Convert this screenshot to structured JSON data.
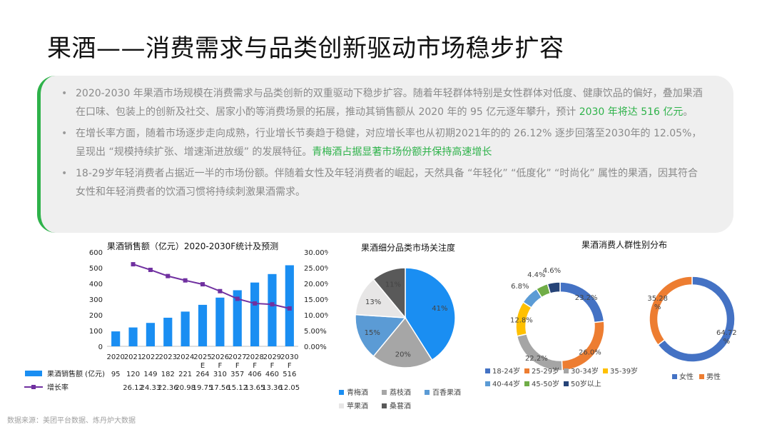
{
  "page": {
    "title": "果酒——消费需求与品类创新驱动市场稳步扩容",
    "source": "数据来源：美团平台数据、炼丹炉大数据"
  },
  "bullets": [
    {
      "parts": [
        {
          "text": "2020-2030 年果酒市场规模在消费需求与品类创新的双重驱动下稳步扩容。随着年轻群体特别是女性群体对低度、健康饮品的偏好，叠加果酒在口味、包装上的创新及社交、居家小酌等消费场景的拓展，推动其销售额从 2020 年的 95 亿元逐年攀升，预计 ",
          "highlight": false
        },
        {
          "text": "2030 年将达 516 亿元",
          "highlight": true
        },
        {
          "text": "。",
          "highlight": false
        }
      ]
    },
    {
      "parts": [
        {
          "text": "在增长率方面，随着市场逐步走向成熟，行业增长节奏趋于稳健，对应增长率也从初期2021年的的 26.12% 逐步回落至2030年的 12.05%，呈现出 “规模持续扩张、增速渐进放缓” 的发展特征。",
          "highlight": false
        },
        {
          "text": "青梅酒占据显著市场份额并保持高速增长",
          "highlight": true
        }
      ]
    },
    {
      "parts": [
        {
          "text": "18-29岁年轻消费者占据近一半的市场份额。伴随着女性及年轻消费者的崛起，天然具备 “年轻化” “低度化” “时尚化” 属性的果酒，因其符合女性和年轻消费者的饮酒习惯将持续刺激果酒需求。",
          "highlight": false
        }
      ]
    }
  ],
  "chart_data": [
    {
      "type": "bar",
      "title": "果酒销售额（亿元）2020-2030F统计及预测",
      "categories": [
        "2020",
        "2021",
        "2022",
        "2023",
        "2024",
        "2025E",
        "2026F",
        "2027F",
        "2028F",
        "2029F",
        "2030F"
      ],
      "category_lines": [
        [
          "2020"
        ],
        [
          "2021"
        ],
        [
          "2022"
        ],
        [
          "2023"
        ],
        [
          "2024"
        ],
        [
          "2025",
          "E"
        ],
        [
          "2026",
          "F"
        ],
        [
          "2027",
          "F"
        ],
        [
          "2028",
          "F"
        ],
        [
          "2029",
          "F"
        ],
        [
          "2030",
          "F"
        ]
      ],
      "series": [
        {
          "name": "果酒销售额 (亿元)",
          "type": "bar",
          "axis": "left",
          "color": "#1a8ef2",
          "values": [
            95,
            120,
            149,
            182,
            221,
            264,
            310,
            357,
            406,
            460,
            516
          ]
        },
        {
          "name": "增长率",
          "type": "line",
          "axis": "right",
          "color": "#7030a0",
          "values": [
            null,
            26.12,
            24.33,
            22.36,
            20.98,
            19.75,
            17.56,
            15.12,
            13.65,
            13.36,
            12.05
          ]
        }
      ],
      "table_rows": [
        {
          "label": "果酒销售额 (亿元)",
          "cells": [
            "95",
            "120",
            "149",
            "182",
            "221",
            "264",
            "310",
            "357",
            "406",
            "460",
            "516"
          ]
        },
        {
          "label": "增长率",
          "cells": [
            "",
            "26.12",
            "24.33",
            "22.36",
            "20.98",
            "19.75",
            "17.56",
            "15.12",
            "13.65",
            "13.36",
            "12.05"
          ]
        }
      ],
      "ylim_left": [
        0,
        600
      ],
      "yticks_left": [
        "0",
        "100",
        "200",
        "300",
        "400",
        "500",
        "600"
      ],
      "ylim_right": [
        0,
        30
      ],
      "yticks_right": [
        "0.00%",
        "5.00%",
        "10.00%",
        "15.00%",
        "20.00%",
        "25.00%",
        "30.00%"
      ]
    },
    {
      "type": "pie",
      "title": "果酒细分品类市场关注度",
      "labels": [
        "青梅酒",
        "荔枝酒",
        "百香果酒",
        "苹果酒",
        "桑葚酒"
      ],
      "values": [
        41,
        20,
        15,
        13,
        11
      ],
      "value_labels": [
        "41%",
        "20%",
        "15%",
        "13%",
        "11%"
      ],
      "colors": [
        "#1a8ef2",
        "#a6a6a6",
        "#5b9bd5",
        "#e7e6e6",
        "#595959"
      ],
      "legend_position": "bottom"
    },
    {
      "type": "pie",
      "title": "果酒消费人群性别分布",
      "subcharts": [
        {
          "kind": "donut",
          "labels": [
            "18-24岁",
            "25-29岁",
            "30-34岁",
            "35-39岁",
            "40-44岁",
            "45-50岁",
            "50岁以上"
          ],
          "values": [
            23.2,
            26.0,
            22.2,
            12.8,
            6.8,
            4.4,
            4.6
          ],
          "value_labels": [
            "23.2%",
            "26.0%",
            "22.2%",
            "12.8%",
            "6.8%",
            "4.4%",
            "4.6%"
          ],
          "colors": [
            "#4472c4",
            "#ed7d31",
            "#a5a5a5",
            "#ffc000",
            "#5b9bd5",
            "#70ad47",
            "#264478"
          ],
          "legend_position": "bottom"
        },
        {
          "kind": "donut",
          "labels": [
            "女性",
            "男性"
          ],
          "values": [
            64.72,
            35.28
          ],
          "value_labels": [
            [
              "64.72",
              "%"
            ],
            [
              "35.28",
              "%"
            ]
          ],
          "colors": [
            "#4472c4",
            "#ed7d31"
          ],
          "legend_position": "bottom"
        }
      ]
    }
  ]
}
